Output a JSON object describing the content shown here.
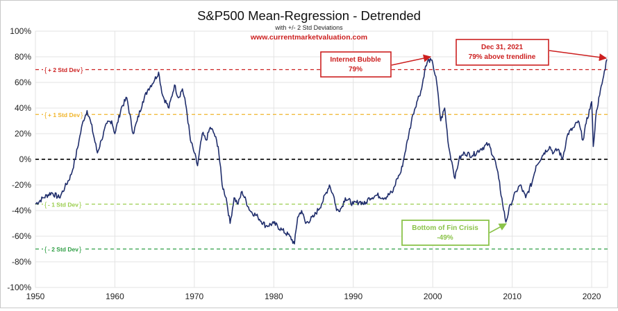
{
  "chart_data": {
    "type": "line",
    "title": "S&P500 Mean-Regression - Detrended",
    "subtitle": "with +/- 2 Std Deviations",
    "source": "www.currentmarketvaluation.com",
    "xlabel": "",
    "ylabel": "",
    "xlim": [
      1950,
      2022
    ],
    "ylim": [
      -100,
      100
    ],
    "x_ticks": [
      "1950",
      "1960",
      "1970",
      "1980",
      "1990",
      "2000",
      "2010",
      "2020"
    ],
    "y_ticks": [
      "100%",
      "80%",
      "60%",
      "40%",
      "20%",
      "0%",
      "-20%",
      "-40%",
      "-60%",
      "-80%",
      "-100%"
    ],
    "grid": true,
    "reference_lines": [
      {
        "label": "+ 2 Std Dev",
        "value": 70,
        "color": "#cc1f1f"
      },
      {
        "label": "+ 1 Std Dev",
        "value": 35,
        "color": "#f0b429"
      },
      {
        "label": "",
        "value": 0,
        "color": "#111111"
      },
      {
        "label": "- 1 Std Dev",
        "value": -35,
        "color": "#9acd4c"
      },
      {
        "label": "- 2 Std Dev",
        "value": -70,
        "color": "#2e9e44"
      }
    ],
    "series": [
      {
        "color": "#1f2d6b",
        "x": [
          1950.0,
          1951.0,
          1952.0,
          1953.0,
          1953.7,
          1954.5,
          1955.0,
          1955.5,
          1956.0,
          1956.5,
          1957.0,
          1957.8,
          1958.3,
          1959.0,
          1959.6,
          1960.0,
          1960.8,
          1961.5,
          1962.3,
          1962.8,
          1963.5,
          1964.2,
          1965.0,
          1965.5,
          1966.0,
          1966.8,
          1967.5,
          1968.0,
          1968.5,
          1969.0,
          1969.5,
          1970.0,
          1970.4,
          1971.0,
          1971.5,
          1972.0,
          1972.5,
          1973.0,
          1973.5,
          1974.0,
          1974.5,
          1975.0,
          1975.5,
          1976.0,
          1977.0,
          1978.0,
          1979.0,
          1980.0,
          1981.0,
          1982.0,
          1982.6,
          1983.0,
          1983.5,
          1984.0,
          1985.0,
          1986.0,
          1987.0,
          1987.6,
          1987.9,
          1988.5,
          1989.0,
          1990.0,
          1990.8,
          1991.5,
          1992.0,
          1993.0,
          1994.0,
          1995.0,
          1995.5,
          1996.0,
          1996.5,
          1997.0,
          1997.5,
          1998.0,
          1998.6,
          1999.0,
          1999.5,
          2000.0,
          2000.5,
          2001.0,
          2001.5,
          2002.0,
          2002.5,
          2002.8,
          2003.3,
          2004.0,
          2005.0,
          2006.0,
          2007.0,
          2007.8,
          2008.3,
          2008.8,
          2009.2,
          2009.8,
          2010.5,
          2011.0,
          2011.7,
          2012.5,
          2013.0,
          2014.0,
          2014.7,
          2015.2,
          2015.8,
          2016.3,
          2017.0,
          2017.8,
          2018.3,
          2018.9,
          2019.3,
          2020.0,
          2020.2,
          2020.6,
          2021.0,
          2021.5,
          2021.9
        ],
        "values": [
          -35,
          -30,
          -26,
          -30,
          -22,
          -12,
          0,
          15,
          30,
          38,
          28,
          5,
          15,
          28,
          30,
          20,
          40,
          48,
          20,
          30,
          45,
          55,
          62,
          68,
          50,
          40,
          58,
          48,
          55,
          40,
          15,
          5,
          -5,
          20,
          15,
          25,
          20,
          10,
          -20,
          -30,
          -50,
          -30,
          -35,
          -25,
          -40,
          -45,
          -52,
          -50,
          -55,
          -60,
          -66,
          -45,
          -40,
          -50,
          -45,
          -35,
          -20,
          -30,
          -40,
          -38,
          -30,
          -35,
          -33,
          -35,
          -30,
          -28,
          -30,
          -25,
          -15,
          -10,
          5,
          20,
          35,
          45,
          55,
          70,
          78,
          75,
          60,
          30,
          40,
          10,
          -5,
          -15,
          0,
          5,
          3,
          8,
          12,
          0,
          -15,
          -35,
          -49,
          -35,
          -25,
          -20,
          -30,
          -18,
          -5,
          5,
          10,
          5,
          8,
          0,
          20,
          25,
          30,
          15,
          28,
          45,
          10,
          38,
          50,
          65,
          78
        ]
      }
    ],
    "annotations": [
      {
        "title": "Internet Bubble",
        "value": "79%",
        "color": "#cc1f1f"
      },
      {
        "title": "Dec 31, 2021",
        "value": "79% above trendline",
        "color": "#cc1f1f"
      },
      {
        "title": "Bottom of Fin Crisis",
        "value": "-49%",
        "color": "#8bc34a"
      }
    ]
  }
}
